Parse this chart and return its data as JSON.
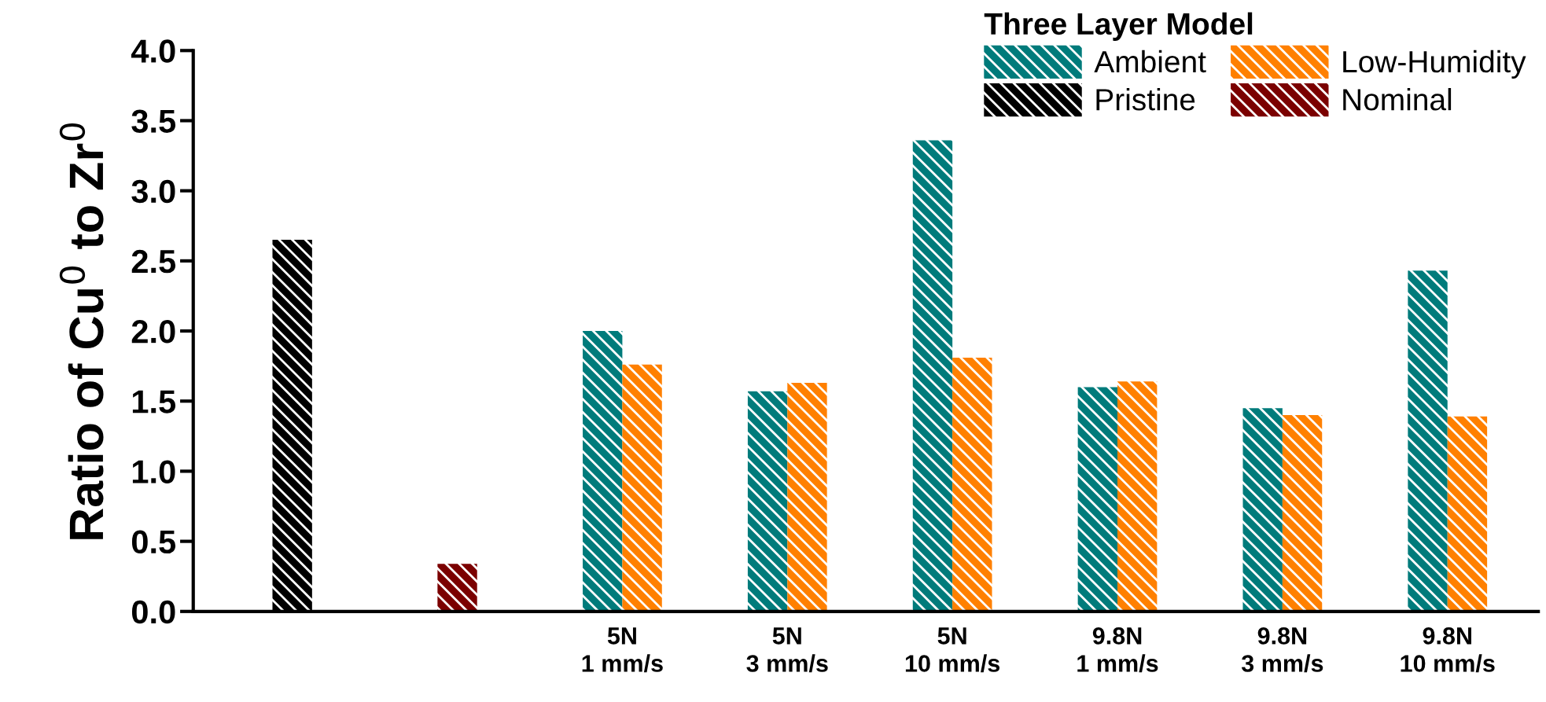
{
  "chart_data": {
    "type": "bar",
    "ylabel": "Ratio of Cu$^{0}$ to Zr$^{0}$",
    "legend_title": "Three Layer Model",
    "categories": [
      null,
      null,
      "5N\n1 mm/s",
      "5N\n3 mm/s",
      "5N\n10 mm/s",
      "9.8N\n1 mm/s",
      "9.8N\n3 mm/s",
      "9.8N\n10 mm/s"
    ],
    "series": [
      {
        "name": "Ambient",
        "color": "#007b7b",
        "values": [
          null,
          null,
          2.0,
          1.57,
          3.36,
          1.6,
          1.45,
          2.43
        ]
      },
      {
        "name": "Low-Humidity",
        "color": "#ff8000",
        "values": [
          null,
          null,
          1.76,
          1.63,
          1.81,
          1.64,
          1.4,
          1.39
        ]
      },
      {
        "name": "Pristine",
        "color": "#000000",
        "values": [
          2.65,
          null,
          null,
          null,
          null,
          null,
          null,
          null
        ]
      },
      {
        "name": "Nominal",
        "color": "#7b0000",
        "values": [
          null,
          0.34,
          null,
          null,
          null,
          null,
          null,
          null
        ]
      }
    ],
    "ylim": [
      0,
      4.0
    ],
    "yticks": [
      {
        "value": 0,
        "label": "0.0"
      },
      0.5,
      {
        "value": 1,
        "label": "1.0"
      },
      1.5,
      {
        "value": 2,
        "label": "2.0"
      },
      2.5,
      {
        "value": 3,
        "label": "3.0"
      },
      3.5,
      {
        "value": 4,
        "label": "4.0"
      }
    ],
    "legend": "top right",
    "grid": false
  }
}
